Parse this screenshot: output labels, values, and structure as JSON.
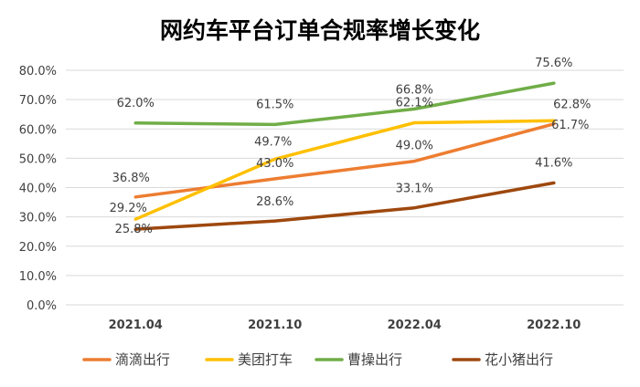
{
  "chart_data": {
    "type": "line",
    "title": "网约车平台订单合规率增长变化",
    "categories": [
      "2021.04",
      "2021.10",
      "2022.04",
      "2022.10"
    ],
    "yaxis": {
      "min": 0,
      "max": 80,
      "step": 10,
      "tick_format": "percent-1dp",
      "tick_labels": [
        "0.0%",
        "10.0%",
        "20.0%",
        "30.0%",
        "40.0%",
        "50.0%",
        "60.0%",
        "70.0%",
        "80.0%"
      ]
    },
    "grid": true,
    "legend_position": "bottom",
    "series": [
      {
        "name": "滴滴出行",
        "color": "#ed7d31",
        "values": [
          36.8,
          43.0,
          49.0,
          61.7
        ],
        "labels": [
          "36.8%",
          "43.0%",
          "49.0%",
          "61.7%"
        ]
      },
      {
        "name": "美团打车",
        "color": "#ffc000",
        "values": [
          29.2,
          49.7,
          62.1,
          62.8
        ],
        "labels": [
          "29.2%",
          "49.7%",
          "62.1%",
          "62.8%"
        ]
      },
      {
        "name": "曹操出行",
        "color": "#70ad47",
        "values": [
          62.0,
          61.5,
          66.8,
          75.6
        ],
        "labels": [
          "62.0%",
          "61.5%",
          "66.8%",
          "75.6%"
        ]
      },
      {
        "name": "花小猪出行",
        "color": "#9e480e",
        "values": [
          25.8,
          28.6,
          33.1,
          41.6
        ],
        "labels": [
          "25.8%",
          "28.6%",
          "33.1%",
          "41.6%"
        ]
      }
    ]
  }
}
